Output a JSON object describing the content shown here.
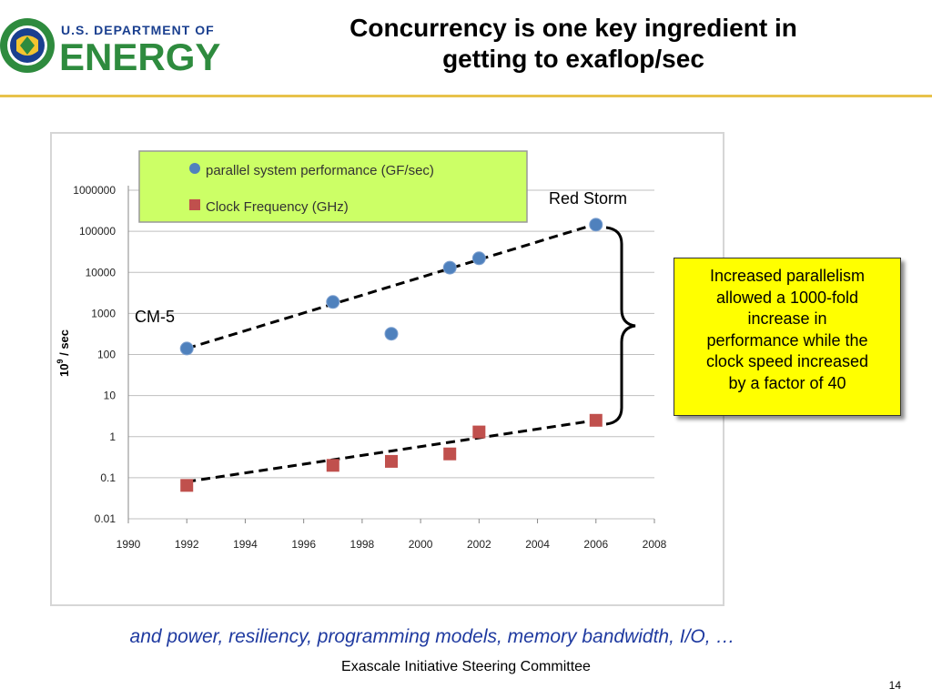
{
  "header": {
    "logo_text_top": "U.S. DEPARTMENT OF",
    "logo_text_main": "ENERGY",
    "title_line1": "Concurrency is one key ingredient in",
    "title_line2": "getting to exaflop/sec",
    "colors": {
      "logo_green": "#2e8b3e",
      "logo_blue": "#1a3f8f",
      "rule": "#e8c24a"
    }
  },
  "chart_data": {
    "type": "scatter",
    "y_scale": "log",
    "xlim": [
      1990,
      2008
    ],
    "ylim": [
      0.01,
      1000000
    ],
    "x_ticks": [
      "1990",
      "1992",
      "1994",
      "1996",
      "1998",
      "2000",
      "2002",
      "2004",
      "2006",
      "2008"
    ],
    "y_ticks": [
      "0.01",
      "0.1",
      "1",
      "10",
      "100",
      "1000",
      "10000",
      "100000",
      "1000000"
    ],
    "ylabel_base": "10",
    "ylabel_exp": "9",
    "ylabel_rest": " / sec",
    "grid": true,
    "legend_placement": "top-left",
    "series": [
      {
        "name": "parallel system performance (GF/sec)",
        "marker": "circle",
        "color": "#4f81bd",
        "x": [
          1992,
          1997,
          1999,
          2001,
          2002,
          2006
        ],
        "y": [
          140,
          1900,
          320,
          13000,
          22000,
          145000
        ]
      },
      {
        "name": "Clock Frequency (GHz)",
        "marker": "square",
        "color": "#c0504d",
        "x": [
          1992,
          1997,
          1999,
          2001,
          2002,
          2006
        ],
        "y": [
          0.065,
          0.2,
          0.25,
          0.38,
          1.3,
          2.5
        ]
      }
    ],
    "trendlines": [
      {
        "x": [
          1992,
          2006
        ],
        "y": [
          140,
          150000
        ]
      },
      {
        "x": [
          1992,
          2006
        ],
        "y": [
          0.08,
          2.5
        ]
      }
    ],
    "annotations": [
      {
        "text": "Red Storm",
        "x": 2006,
        "y": 150000
      },
      {
        "text": "CM-5",
        "x": 1992,
        "y": 140
      }
    ],
    "legend_colors": {
      "background": "#ccff66",
      "border": "#999999"
    }
  },
  "callout": {
    "lines": [
      "Increased parallelism",
      "allowed a 1000-fold",
      "increase in",
      "performance while the",
      "clock speed increased",
      "by a factor of 40"
    ],
    "color": "#ffff00"
  },
  "footnote": "and power, resiliency, programming models, memory bandwidth, I/O, …",
  "footer": "Exascale Initiative Steering Committee",
  "page_number": "14"
}
